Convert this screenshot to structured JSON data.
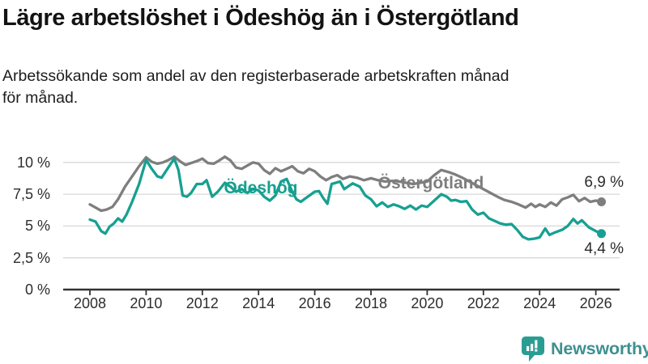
{
  "header": {
    "title": "Lägre arbetslöshet i Ödeshög än i Östergötland",
    "subtitle_lines": [
      "Arbetssökande som andel av den registerbaserade arbetskraften månad",
      "för månad."
    ]
  },
  "colors": {
    "teal": "#17a091",
    "gray": "#7e7e7e",
    "axis": "#333333",
    "grid": "#d8d8d8",
    "text": "#1d1d1d"
  },
  "chart_data": {
    "type": "line",
    "title": "Lägre arbetslöshet i Ödeshög än i Östergötland",
    "unit": "%",
    "grid": true,
    "legend_position": "inline",
    "x_axis": {
      "range": [
        2007.05,
        2026.9
      ],
      "ticks": [
        {
          "year": 2008,
          "label": "2008"
        },
        {
          "year": 2010,
          "label": "2010"
        },
        {
          "year": 2012,
          "label": "2012"
        },
        {
          "year": 2014,
          "label": "2014"
        },
        {
          "year": 2016,
          "label": "2016"
        },
        {
          "year": 2018,
          "label": "2018"
        },
        {
          "year": 2020,
          "label": "2020"
        },
        {
          "year": 2022,
          "label": "2022"
        },
        {
          "year": 2024,
          "label": "2024"
        },
        {
          "year": 2026,
          "label": "2026"
        }
      ]
    },
    "y_axis": {
      "range": [
        0,
        11.3
      ],
      "ticks": [
        {
          "value": 0,
          "label": "0 %"
        },
        {
          "value": 2.5,
          "label": "2,5 %"
        },
        {
          "value": 5,
          "label": "5 %"
        },
        {
          "value": 7.5,
          "label": "7,5 %"
        },
        {
          "value": 10,
          "label": "10 %"
        }
      ]
    },
    "series": [
      {
        "id": "odeshog",
        "name": "Ödeshög",
        "color": "#17a091",
        "end_label": "4,4 %",
        "end_value": 4.4,
        "points": [
          [
            2008,
            5.5
          ],
          [
            2008.2,
            5.35
          ],
          [
            2008.4,
            4.6
          ],
          [
            2008.55,
            4.4
          ],
          [
            2008.7,
            4.95
          ],
          [
            2008.85,
            5.2
          ],
          [
            2009,
            5.6
          ],
          [
            2009.15,
            5.35
          ],
          [
            2009.3,
            5.9
          ],
          [
            2009.5,
            6.9
          ],
          [
            2009.75,
            8.3
          ],
          [
            2010,
            10.2
          ],
          [
            2010.2,
            9.5
          ],
          [
            2010.4,
            8.9
          ],
          [
            2010.55,
            8.8
          ],
          [
            2010.7,
            9.3
          ],
          [
            2010.85,
            9.8
          ],
          [
            2011,
            10.3
          ],
          [
            2011.15,
            9.4
          ],
          [
            2011.3,
            7.4
          ],
          [
            2011.45,
            7.3
          ],
          [
            2011.6,
            7.6
          ],
          [
            2011.8,
            8.3
          ],
          [
            2012,
            8.3
          ],
          [
            2012.15,
            8.6
          ],
          [
            2012.35,
            7.3
          ],
          [
            2012.55,
            7.7
          ],
          [
            2012.8,
            8.4
          ],
          [
            2013,
            8.1
          ],
          [
            2013.2,
            7.7
          ],
          [
            2013.4,
            7.9
          ],
          [
            2013.6,
            7.6
          ],
          [
            2013.8,
            7.9
          ],
          [
            2014,
            7.8
          ],
          [
            2014.2,
            7.3
          ],
          [
            2014.4,
            7.0
          ],
          [
            2014.6,
            7.4
          ],
          [
            2014.8,
            8.5
          ],
          [
            2015,
            8.7
          ],
          [
            2015.2,
            7.7
          ],
          [
            2015.35,
            7.1
          ],
          [
            2015.5,
            6.9
          ],
          [
            2015.75,
            7.3
          ],
          [
            2016,
            7.7
          ],
          [
            2016.15,
            7.75
          ],
          [
            2016.3,
            7.2
          ],
          [
            2016.45,
            6.75
          ],
          [
            2016.6,
            8.3
          ],
          [
            2016.9,
            8.5
          ],
          [
            2017.05,
            7.9
          ],
          [
            2017.35,
            8.35
          ],
          [
            2017.6,
            8.1
          ],
          [
            2017.8,
            7.4
          ],
          [
            2018,
            7.1
          ],
          [
            2018.2,
            6.55
          ],
          [
            2018.4,
            6.85
          ],
          [
            2018.6,
            6.5
          ],
          [
            2018.8,
            6.7
          ],
          [
            2019,
            6.55
          ],
          [
            2019.2,
            6.35
          ],
          [
            2019.4,
            6.6
          ],
          [
            2019.6,
            6.3
          ],
          [
            2019.8,
            6.6
          ],
          [
            2020,
            6.5
          ],
          [
            2020.25,
            7.0
          ],
          [
            2020.5,
            7.5
          ],
          [
            2020.7,
            7.3
          ],
          [
            2020.85,
            7.0
          ],
          [
            2021,
            7.05
          ],
          [
            2021.2,
            6.9
          ],
          [
            2021.4,
            6.95
          ],
          [
            2021.6,
            6.3
          ],
          [
            2021.8,
            5.9
          ],
          [
            2022,
            6.05
          ],
          [
            2022.2,
            5.6
          ],
          [
            2022.4,
            5.4
          ],
          [
            2022.6,
            5.2
          ],
          [
            2022.8,
            5.1
          ],
          [
            2023,
            5.15
          ],
          [
            2023.2,
            4.7
          ],
          [
            2023.4,
            4.15
          ],
          [
            2023.6,
            3.95
          ],
          [
            2023.8,
            4.0
          ],
          [
            2024,
            4.1
          ],
          [
            2024.2,
            4.8
          ],
          [
            2024.35,
            4.3
          ],
          [
            2024.55,
            4.5
          ],
          [
            2024.8,
            4.7
          ],
          [
            2025,
            5.0
          ],
          [
            2025.2,
            5.55
          ],
          [
            2025.35,
            5.2
          ],
          [
            2025.5,
            5.45
          ],
          [
            2025.75,
            4.9
          ],
          [
            2026,
            4.6
          ],
          [
            2026.2,
            4.4
          ]
        ]
      },
      {
        "id": "ostergotland",
        "name": "Östergötland",
        "color": "#7e7e7e",
        "end_label": "6,9 %",
        "end_value": 6.9,
        "points": [
          [
            2008,
            6.7
          ],
          [
            2008.2,
            6.45
          ],
          [
            2008.4,
            6.2
          ],
          [
            2008.6,
            6.3
          ],
          [
            2008.8,
            6.5
          ],
          [
            2009,
            7.1
          ],
          [
            2009.25,
            8.1
          ],
          [
            2009.5,
            8.9
          ],
          [
            2009.75,
            9.7
          ],
          [
            2010,
            10.4
          ],
          [
            2010.2,
            10.05
          ],
          [
            2010.4,
            9.9
          ],
          [
            2010.6,
            10.0
          ],
          [
            2010.8,
            10.2
          ],
          [
            2011,
            10.45
          ],
          [
            2011.2,
            10.1
          ],
          [
            2011.4,
            9.8
          ],
          [
            2011.6,
            9.95
          ],
          [
            2011.8,
            10.1
          ],
          [
            2012,
            10.3
          ],
          [
            2012.2,
            9.95
          ],
          [
            2012.4,
            9.9
          ],
          [
            2012.6,
            10.15
          ],
          [
            2012.8,
            10.45
          ],
          [
            2013,
            10.15
          ],
          [
            2013.2,
            9.6
          ],
          [
            2013.4,
            9.5
          ],
          [
            2013.6,
            9.75
          ],
          [
            2013.8,
            10.0
          ],
          [
            2014,
            9.9
          ],
          [
            2014.2,
            9.4
          ],
          [
            2014.4,
            9.1
          ],
          [
            2014.6,
            9.55
          ],
          [
            2014.8,
            9.3
          ],
          [
            2015,
            9.5
          ],
          [
            2015.2,
            9.7
          ],
          [
            2015.4,
            9.3
          ],
          [
            2015.6,
            9.15
          ],
          [
            2015.8,
            9.5
          ],
          [
            2016,
            9.3
          ],
          [
            2016.2,
            8.9
          ],
          [
            2016.4,
            8.6
          ],
          [
            2016.6,
            8.85
          ],
          [
            2016.8,
            9.0
          ],
          [
            2017,
            8.7
          ],
          [
            2017.25,
            8.9
          ],
          [
            2017.5,
            8.8
          ],
          [
            2017.75,
            8.6
          ],
          [
            2018,
            8.75
          ],
          [
            2018.25,
            8.6
          ],
          [
            2018.5,
            8.5
          ],
          [
            2018.75,
            8.55
          ],
          [
            2019,
            8.5
          ],
          [
            2019.25,
            8.4
          ],
          [
            2019.5,
            8.3
          ],
          [
            2019.75,
            8.4
          ],
          [
            2020,
            8.5
          ],
          [
            2020.25,
            9.0
          ],
          [
            2020.5,
            9.4
          ],
          [
            2020.75,
            9.25
          ],
          [
            2021,
            9.05
          ],
          [
            2021.25,
            8.8
          ],
          [
            2021.5,
            8.5
          ],
          [
            2021.75,
            8.2
          ],
          [
            2022,
            7.9
          ],
          [
            2022.25,
            7.6
          ],
          [
            2022.5,
            7.3
          ],
          [
            2022.75,
            7.05
          ],
          [
            2023,
            6.9
          ],
          [
            2023.25,
            6.7
          ],
          [
            2023.5,
            6.45
          ],
          [
            2023.7,
            6.75
          ],
          [
            2023.85,
            6.5
          ],
          [
            2024,
            6.7
          ],
          [
            2024.2,
            6.5
          ],
          [
            2024.4,
            6.85
          ],
          [
            2024.6,
            6.6
          ],
          [
            2024.8,
            7.1
          ],
          [
            2025,
            7.25
          ],
          [
            2025.2,
            7.45
          ],
          [
            2025.4,
            6.95
          ],
          [
            2025.6,
            7.2
          ],
          [
            2025.8,
            6.9
          ],
          [
            2026,
            7.0
          ],
          [
            2026.2,
            6.9
          ]
        ]
      }
    ]
  },
  "footer": {
    "brand": "Newsworthy",
    "brand_color": "#3e9090",
    "icon": "newsworthy-bubble-chart-icon",
    "icon_color": "#2a9d92"
  }
}
